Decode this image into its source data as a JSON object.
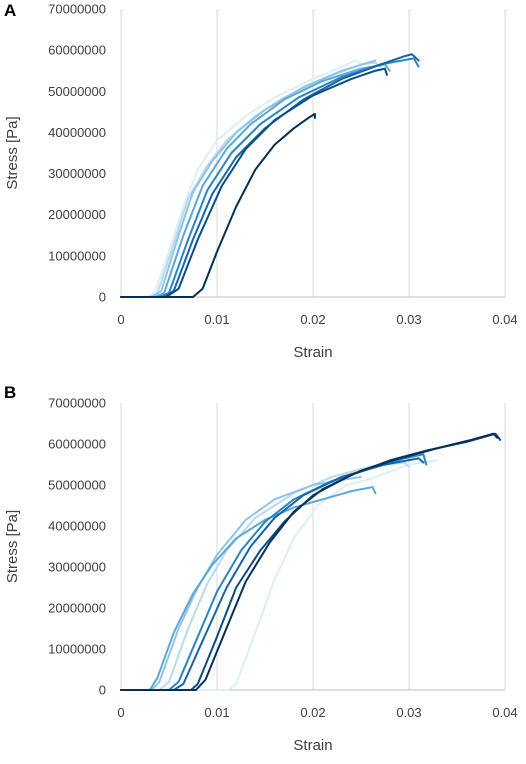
{
  "chart_data": [
    {
      "panel_label": "A",
      "type": "line",
      "xlabel": "Strain",
      "ylabel": "Stress [Pa]",
      "xlim": [
        0,
        0.04
      ],
      "ylim": [
        0,
        70000000
      ],
      "x_ticks": [
        "0",
        "0.01",
        "0.02",
        "0.03",
        "0.04"
      ],
      "y_ticks": [
        "0",
        "10000000",
        "20000000",
        "30000000",
        "40000000",
        "50000000",
        "60000000",
        "70000000"
      ],
      "grid": "vertical",
      "legend": "none",
      "series": [
        {
          "color": "#dceef9",
          "points": [
            [
              0,
              0
            ],
            [
              0.0028,
              0
            ],
            [
              0.0035,
              1000000
            ],
            [
              0.005,
              11000000
            ],
            [
              0.0065,
              22000000
            ],
            [
              0.008,
              31000000
            ],
            [
              0.01,
              38000000
            ],
            [
              0.013,
              44000000
            ],
            [
              0.016,
              48500000
            ],
            [
              0.02,
              53000000
            ],
            [
              0.0245,
              57500000
            ],
            [
              0.025,
              56500000
            ]
          ]
        },
        {
          "color": "#b7daf0",
          "points": [
            [
              0,
              0
            ],
            [
              0.003,
              0
            ],
            [
              0.0038,
              1000000
            ],
            [
              0.0055,
              13000000
            ],
            [
              0.007,
              24000000
            ],
            [
              0.009,
              32000000
            ],
            [
              0.011,
              38000000
            ],
            [
              0.014,
              44000000
            ],
            [
              0.017,
              48500000
            ],
            [
              0.021,
              53000000
            ],
            [
              0.025,
              56500000
            ],
            [
              0.0265,
              57000000
            ],
            [
              0.027,
              56000000
            ]
          ]
        },
        {
          "color": "#8fc4e6",
          "points": [
            [
              0,
              0
            ],
            [
              0.0033,
              0
            ],
            [
              0.0042,
              1500000
            ],
            [
              0.006,
              15000000
            ],
            [
              0.0075,
              25500000
            ],
            [
              0.0095,
              33000000
            ],
            [
              0.012,
              40000000
            ],
            [
              0.015,
              45500000
            ],
            [
              0.019,
              51000000
            ],
            [
              0.023,
              55000000
            ],
            [
              0.0265,
              57500000
            ]
          ]
        },
        {
          "color": "#5ba7d8",
          "points": [
            [
              0,
              0
            ],
            [
              0.0036,
              0
            ],
            [
              0.0045,
              1000000
            ],
            [
              0.0065,
              15000000
            ],
            [
              0.0085,
              27000000
            ],
            [
              0.011,
              36000000
            ],
            [
              0.0135,
              42000000
            ],
            [
              0.017,
              48000000
            ],
            [
              0.021,
              52500000
            ],
            [
              0.025,
              55500000
            ],
            [
              0.0275,
              56500000
            ],
            [
              0.028,
              55000000
            ]
          ]
        },
        {
          "color": "#2a85c3",
          "points": [
            [
              0,
              0
            ],
            [
              0.004,
              0
            ],
            [
              0.005,
              1000000
            ],
            [
              0.007,
              14000000
            ],
            [
              0.009,
              26000000
            ],
            [
              0.0115,
              35000000
            ],
            [
              0.0145,
              42000000
            ],
            [
              0.0185,
              48500000
            ],
            [
              0.023,
              53500000
            ],
            [
              0.027,
              56500000
            ],
            [
              0.0305,
              58000000
            ],
            [
              0.031,
              56000000
            ]
          ]
        },
        {
          "color": "#1565a8",
          "points": [
            [
              0,
              0
            ],
            [
              0.0045,
              0
            ],
            [
              0.0055,
              1500000
            ],
            [
              0.0075,
              14000000
            ],
            [
              0.0095,
              25000000
            ],
            [
              0.012,
              34000000
            ],
            [
              0.015,
              41000000
            ],
            [
              0.019,
              48000000
            ],
            [
              0.023,
              53000000
            ],
            [
              0.027,
              56500000
            ],
            [
              0.0295,
              58500000
            ],
            [
              0.0303,
              59000000
            ],
            [
              0.031,
              57500000
            ]
          ]
        },
        {
          "color": "#0a4d85",
          "points": [
            [
              0,
              0
            ],
            [
              0.0047,
              0
            ],
            [
              0.006,
              2000000
            ],
            [
              0.008,
              14000000
            ],
            [
              0.0105,
              27000000
            ],
            [
              0.013,
              36000000
            ],
            [
              0.016,
              43000000
            ],
            [
              0.02,
              49000000
            ],
            [
              0.024,
              53000000
            ],
            [
              0.0265,
              55000000
            ],
            [
              0.0275,
              55500000
            ],
            [
              0.0277,
              54000000
            ]
          ]
        },
        {
          "color": "#062f57",
          "points": [
            [
              0,
              0
            ],
            [
              0.0075,
              0
            ],
            [
              0.0085,
              2000000
            ],
            [
              0.01,
              11000000
            ],
            [
              0.012,
              22000000
            ],
            [
              0.014,
              31000000
            ],
            [
              0.016,
              37000000
            ],
            [
              0.018,
              41000000
            ],
            [
              0.0195,
              43500000
            ],
            [
              0.0202,
              44500000
            ],
            [
              0.0202,
              43500000
            ]
          ]
        }
      ]
    },
    {
      "panel_label": "B",
      "type": "line",
      "xlabel": "Strain",
      "ylabel": "Stress [Pa]",
      "xlim": [
        0,
        0.04
      ],
      "ylim": [
        0,
        70000000
      ],
      "x_ticks": [
        "0",
        "0.01",
        "0.02",
        "0.03",
        "0.04"
      ],
      "y_ticks": [
        "0",
        "10000000",
        "20000000",
        "30000000",
        "40000000",
        "50000000",
        "60000000",
        "70000000"
      ],
      "grid": "vertical",
      "legend": "none",
      "series": [
        {
          "color": "#dceef9",
          "points": [
            [
              0,
              0
            ],
            [
              0.0112,
              0
            ],
            [
              0.012,
              1500000
            ],
            [
              0.014,
              14000000
            ],
            [
              0.016,
              27000000
            ],
            [
              0.018,
              37000000
            ],
            [
              0.0205,
              45000000
            ],
            [
              0.0235,
              50000000
            ],
            [
              0.026,
              51500000
            ],
            [
              0.03,
              55000000
            ],
            [
              0.033,
              56000000
            ]
          ]
        },
        {
          "color": "#b7daf0",
          "points": [
            [
              0,
              0
            ],
            [
              0.004,
              0
            ],
            [
              0.005,
              2000000
            ],
            [
              0.007,
              15000000
            ],
            [
              0.009,
              26000000
            ],
            [
              0.011,
              34000000
            ],
            [
              0.014,
              42000000
            ],
            [
              0.018,
              48000000
            ],
            [
              0.022,
              52000000
            ],
            [
              0.026,
              54500000
            ],
            [
              0.0295,
              55500000
            ],
            [
              0.03,
              54500000
            ]
          ]
        },
        {
          "color": "#8fc4e6",
          "points": [
            [
              0,
              0
            ],
            [
              0.0032,
              0
            ],
            [
              0.004,
              2000000
            ],
            [
              0.006,
              15000000
            ],
            [
              0.008,
              25000000
            ],
            [
              0.01,
              33000000
            ],
            [
              0.013,
              41500000
            ],
            [
              0.016,
              46500000
            ],
            [
              0.02,
              50000000
            ],
            [
              0.025,
              52000000
            ]
          ]
        },
        {
          "color": "#5ba7d8",
          "points": [
            [
              0,
              0
            ],
            [
              0.003,
              0
            ],
            [
              0.0038,
              3000000
            ],
            [
              0.0055,
              14000000
            ],
            [
              0.0075,
              23500000
            ],
            [
              0.0095,
              30500000
            ],
            [
              0.012,
              37000000
            ],
            [
              0.015,
              41500000
            ],
            [
              0.018,
              44500000
            ],
            [
              0.021,
              46500000
            ],
            [
              0.024,
              48500000
            ],
            [
              0.0262,
              49500000
            ],
            [
              0.0265,
              48000000
            ]
          ]
        },
        {
          "color": "#2a85c3",
          "points": [
            [
              0,
              0
            ],
            [
              0.005,
              0
            ],
            [
              0.006,
              2000000
            ],
            [
              0.008,
              13000000
            ],
            [
              0.01,
              24000000
            ],
            [
              0.0125,
              34000000
            ],
            [
              0.015,
              41000000
            ],
            [
              0.018,
              46500000
            ],
            [
              0.022,
              51000000
            ],
            [
              0.026,
              54000000
            ],
            [
              0.0295,
              56500000
            ],
            [
              0.0315,
              57500000
            ],
            [
              0.0318,
              55000000
            ]
          ]
        },
        {
          "color": "#1565a8",
          "points": [
            [
              0,
              0
            ],
            [
              0.0055,
              0
            ],
            [
              0.0065,
              1500000
            ],
            [
              0.0085,
              12000000
            ],
            [
              0.011,
              25000000
            ],
            [
              0.0135,
              35000000
            ],
            [
              0.016,
              42000000
            ],
            [
              0.019,
              47500000
            ],
            [
              0.023,
              52000000
            ],
            [
              0.0275,
              55000000
            ],
            [
              0.031,
              56500000
            ],
            [
              0.0315,
              55500000
            ]
          ]
        },
        {
          "color": "#0a4d85",
          "points": [
            [
              0,
              0
            ],
            [
              0.0073,
              0
            ],
            [
              0.008,
              1500000
            ],
            [
              0.01,
              13000000
            ],
            [
              0.012,
              25000000
            ],
            [
              0.0145,
              34000000
            ],
            [
              0.017,
              41000000
            ],
            [
              0.02,
              47500000
            ],
            [
              0.024,
              52500000
            ],
            [
              0.028,
              56000000
            ],
            [
              0.032,
              58500000
            ],
            [
              0.036,
              60500000
            ],
            [
              0.039,
              62500000
            ],
            [
              0.0395,
              61000000
            ]
          ]
        },
        {
          "color": "#062f57",
          "points": [
            [
              0,
              0
            ],
            [
              0.0078,
              0
            ],
            [
              0.0088,
              2500000
            ],
            [
              0.0108,
              14000000
            ],
            [
              0.013,
              26500000
            ],
            [
              0.0155,
              36000000
            ],
            [
              0.018,
              43500000
            ],
            [
              0.021,
              49000000
            ],
            [
              0.025,
              53500000
            ],
            [
              0.029,
              56500000
            ],
            [
              0.033,
              59000000
            ],
            [
              0.0365,
              61000000
            ],
            [
              0.0388,
              62500000
            ],
            [
              0.0392,
              61500000
            ]
          ]
        }
      ]
    }
  ]
}
